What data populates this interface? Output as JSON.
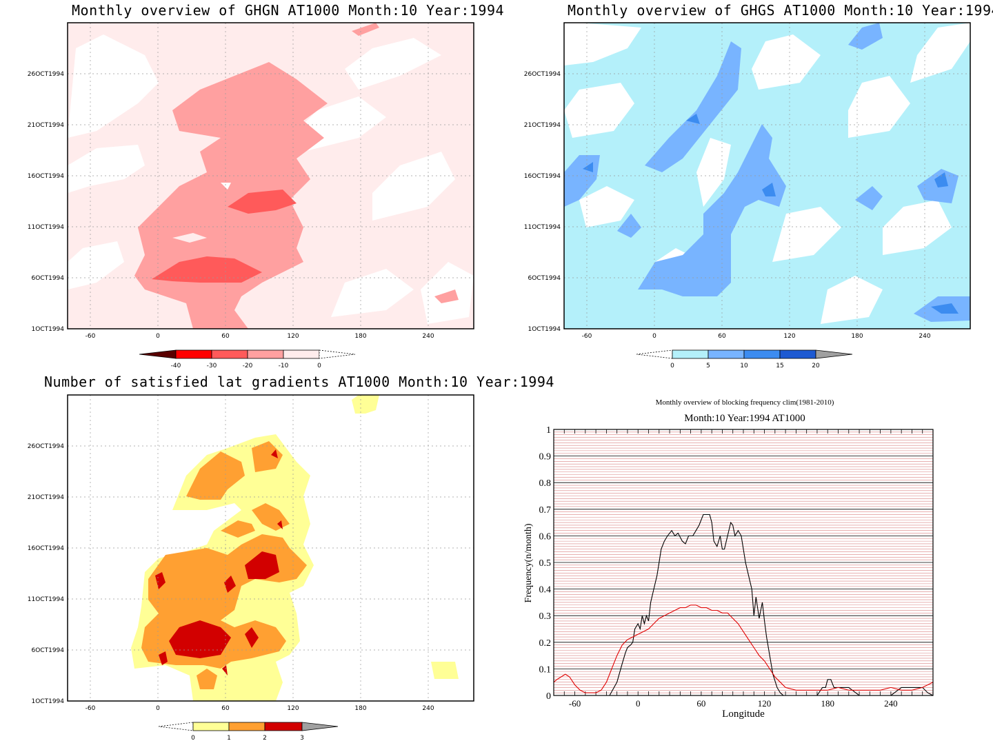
{
  "panels": [
    {
      "id": "ghgn",
      "title": "Monthly overview of GHGN AT1000 Month:10 Year:1994",
      "x_ticks": [
        "-60",
        "0",
        "60",
        "120",
        "180",
        "240"
      ],
      "y_ticks": [
        "1OCT1994",
        "6OCT1994",
        "11OCT1994",
        "16OCT1994",
        "21OCT1994",
        "26OCT1994"
      ],
      "colorbar": {
        "labels": [
          "-40",
          "-30",
          "-20",
          "-10",
          "0"
        ],
        "colors": [
          "#5a0000",
          "#ff0000",
          "#ff5a5a",
          "#ffa0a0",
          "#ffecec"
        ]
      }
    },
    {
      "id": "ghgs",
      "title": "Monthly overview of GHGS AT1000 Month:10 Year:1994",
      "x_ticks": [
        "-60",
        "0",
        "60",
        "120",
        "180",
        "240"
      ],
      "y_ticks": [
        "1OCT1994",
        "6OCT1994",
        "11OCT1994",
        "16OCT1994",
        "21OCT1994",
        "26OCT1994"
      ],
      "colorbar": {
        "labels": [
          "0",
          "5",
          "10",
          "15",
          "20"
        ],
        "colors": [
          "#b4f0fa",
          "#78b4ff",
          "#3c8cf0",
          "#1e5ad2",
          "#a0a0a0"
        ]
      }
    },
    {
      "id": "lat",
      "title": "Number of satisfied lat gradients AT1000 Month:10 Year:1994",
      "x_ticks": [
        "-60",
        "0",
        "60",
        "120",
        "180",
        "240"
      ],
      "y_ticks": [
        "1OCT1994",
        "6OCT1994",
        "11OCT1994",
        "16OCT1994",
        "21OCT1994",
        "26OCT1994"
      ],
      "colorbar": {
        "labels": [
          "0",
          "1",
          "2",
          "3"
        ],
        "colors": [
          "#ffff96",
          "#ffa032",
          "#d20000",
          "#a0a0a0"
        ]
      }
    }
  ],
  "chart_data": [
    {
      "type": "heatmap",
      "title": "Monthly overview of GHGN AT1000 Month:10 Year:1994",
      "x_range": [
        -80,
        280
      ],
      "y_range": [
        "1OCT1994",
        "31OCT1994"
      ],
      "levels": [
        -40,
        -30,
        -20,
        -10,
        0
      ],
      "colors": [
        "#5a0000",
        "#ff0000",
        "#ff5a5a",
        "#ffa0a0",
        "#ffecec"
      ]
    },
    {
      "type": "heatmap",
      "title": "Monthly overview of GHGS AT1000 Month:10 Year:1994",
      "x_range": [
        -80,
        280
      ],
      "y_range": [
        "1OCT1994",
        "31OCT1994"
      ],
      "levels": [
        0,
        5,
        10,
        15,
        20
      ],
      "colors": [
        "#b4f0fa",
        "#78b4ff",
        "#3c8cf0",
        "#1e5ad2",
        "#a0a0a0"
      ]
    },
    {
      "type": "heatmap",
      "title": "Number of satisfied lat gradients AT1000 Month:10 Year:1994",
      "x_range": [
        -80,
        280
      ],
      "y_range": [
        "1OCT1994",
        "31OCT1994"
      ],
      "levels": [
        0,
        1,
        2,
        3
      ],
      "colors": [
        "#ffff96",
        "#ffa032",
        "#d20000",
        "#a0a0a0"
      ]
    },
    {
      "type": "line",
      "title": "Monthly overview of blocking frequency clim(1981-2010)",
      "subtitle": "Month:10 Year:1994  AT1000",
      "xlabel": "Longitude",
      "ylabel": "Frequency(n/month)",
      "xlim": [
        -80,
        280
      ],
      "ylim": [
        0,
        1
      ],
      "x_ticks": [
        -60,
        0,
        60,
        120,
        180,
        240
      ],
      "y_ticks": [
        0,
        0.1,
        0.2,
        0.3,
        0.4,
        0.5,
        0.6,
        0.7,
        0.8,
        0.9,
        1
      ],
      "grid": true,
      "series": [
        {
          "color": "#000000",
          "x": [
            -80,
            -60,
            -40,
            -30,
            -27,
            -20,
            -15,
            -12,
            -10,
            -7,
            -5,
            -3,
            0,
            2,
            4,
            6,
            8,
            10,
            12,
            15,
            18,
            20,
            22,
            25,
            28,
            32,
            35,
            38,
            42,
            45,
            48,
            52,
            55,
            58,
            62,
            65,
            68,
            70,
            72,
            75,
            78,
            80,
            82,
            85,
            88,
            90,
            92,
            95,
            98,
            100,
            102,
            105,
            108,
            110,
            112,
            115,
            118,
            120,
            122,
            125,
            128,
            132,
            135,
            138,
            140,
            150,
            160,
            170,
            175,
            178,
            180,
            183,
            186,
            190,
            195,
            200,
            210,
            220,
            230,
            240,
            250,
            255,
            260,
            265,
            270,
            275,
            280
          ],
          "y": [
            0,
            0,
            0,
            0,
            0,
            0.05,
            0.12,
            0.16,
            0.18,
            0.19,
            0.2,
            0.25,
            0.27,
            0.25,
            0.3,
            0.27,
            0.3,
            0.28,
            0.35,
            0.4,
            0.45,
            0.5,
            0.55,
            0.58,
            0.6,
            0.62,
            0.6,
            0.61,
            0.58,
            0.57,
            0.6,
            0.6,
            0.62,
            0.64,
            0.68,
            0.68,
            0.68,
            0.65,
            0.58,
            0.56,
            0.6,
            0.55,
            0.55,
            0.6,
            0.65,
            0.64,
            0.6,
            0.62,
            0.6,
            0.55,
            0.5,
            0.45,
            0.4,
            0.3,
            0.37,
            0.29,
            0.35,
            0.28,
            0.22,
            0.15,
            0.08,
            0.03,
            0.01,
            0,
            0,
            0,
            0,
            0,
            0.03,
            0.03,
            0.06,
            0.06,
            0.03,
            0.03,
            0.03,
            0.03,
            0,
            0,
            0,
            0,
            0.03,
            0.03,
            0.03,
            0.03,
            0.03,
            0.01,
            0
          ]
        },
        {
          "color": "#e00000",
          "x": [
            -80,
            -77,
            -73,
            -69,
            -65,
            -60,
            -55,
            -50,
            -45,
            -40,
            -35,
            -30,
            -25,
            -20,
            -15,
            -10,
            -5,
            0,
            5,
            10,
            15,
            20,
            25,
            30,
            35,
            40,
            45,
            50,
            55,
            60,
            65,
            70,
            75,
            80,
            85,
            90,
            95,
            100,
            105,
            110,
            115,
            120,
            125,
            130,
            135,
            140,
            150,
            160,
            170,
            180,
            190,
            200,
            210,
            220,
            230,
            240,
            250,
            260,
            270,
            280
          ],
          "y": [
            0.05,
            0.06,
            0.07,
            0.08,
            0.07,
            0.04,
            0.02,
            0.01,
            0.01,
            0.01,
            0.02,
            0.05,
            0.1,
            0.15,
            0.19,
            0.21,
            0.22,
            0.23,
            0.24,
            0.25,
            0.27,
            0.29,
            0.3,
            0.31,
            0.32,
            0.33,
            0.33,
            0.34,
            0.34,
            0.33,
            0.33,
            0.32,
            0.32,
            0.31,
            0.31,
            0.29,
            0.27,
            0.24,
            0.21,
            0.18,
            0.15,
            0.13,
            0.1,
            0.07,
            0.05,
            0.03,
            0.02,
            0.02,
            0.02,
            0.02,
            0.03,
            0.02,
            0.02,
            0.02,
            0.02,
            0.03,
            0.02,
            0.02,
            0.03,
            0.05
          ]
        }
      ]
    }
  ]
}
